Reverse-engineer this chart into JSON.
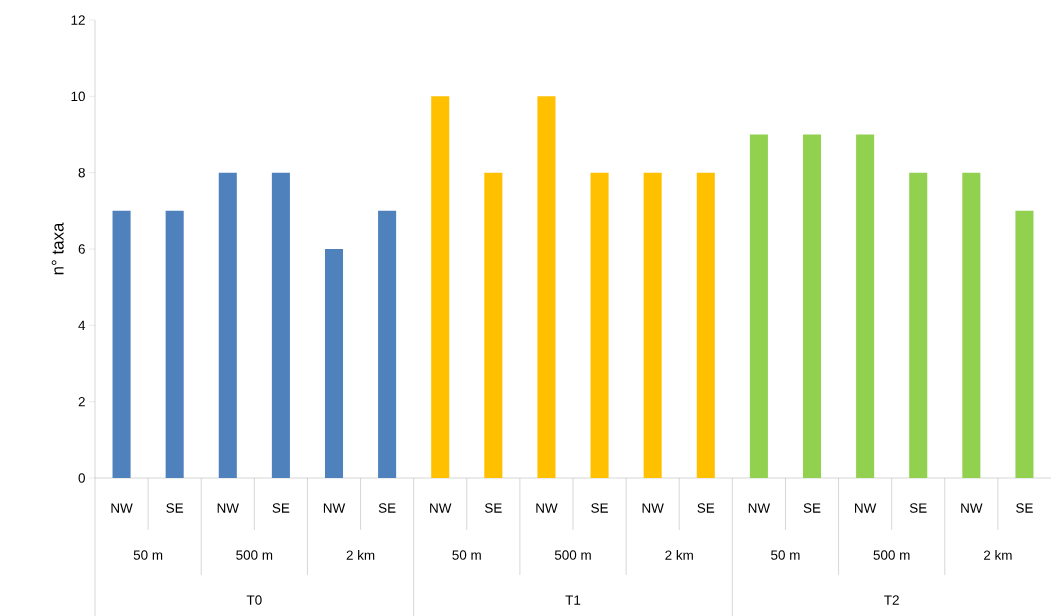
{
  "chart_data": {
    "type": "bar",
    "ylabel": "n° taxa",
    "categories": [
      "NW",
      "SE",
      "NW",
      "SE",
      "NW",
      "SE",
      "NW",
      "SE",
      "NW",
      "SE",
      "NW",
      "SE",
      "NW",
      "SE",
      "NW",
      "SE",
      "NW",
      "SE"
    ],
    "values": [
      7,
      7,
      8,
      8,
      6,
      7,
      10,
      8,
      10,
      8,
      8,
      8,
      9,
      9,
      9,
      8,
      8,
      7
    ],
    "colors": [
      "#4f81bd",
      "#4f81bd",
      "#4f81bd",
      "#4f81bd",
      "#4f81bd",
      "#4f81bd",
      "#ffc000",
      "#ffc000",
      "#ffc000",
      "#ffc000",
      "#ffc000",
      "#ffc000",
      "#92d050",
      "#92d050",
      "#92d050",
      "#92d050",
      "#92d050",
      "#92d050"
    ],
    "annotations": [
      "50 m",
      "500 m",
      "2 km",
      "50 m",
      "500 m",
      "2 km",
      "50 m",
      "500 m",
      "2 km",
      "T0",
      "T1",
      "T2"
    ],
    "ylim": [
      0,
      12
    ],
    "yticks": [
      0,
      2,
      4,
      6,
      8,
      10,
      12
    ],
    "grid": false
  }
}
